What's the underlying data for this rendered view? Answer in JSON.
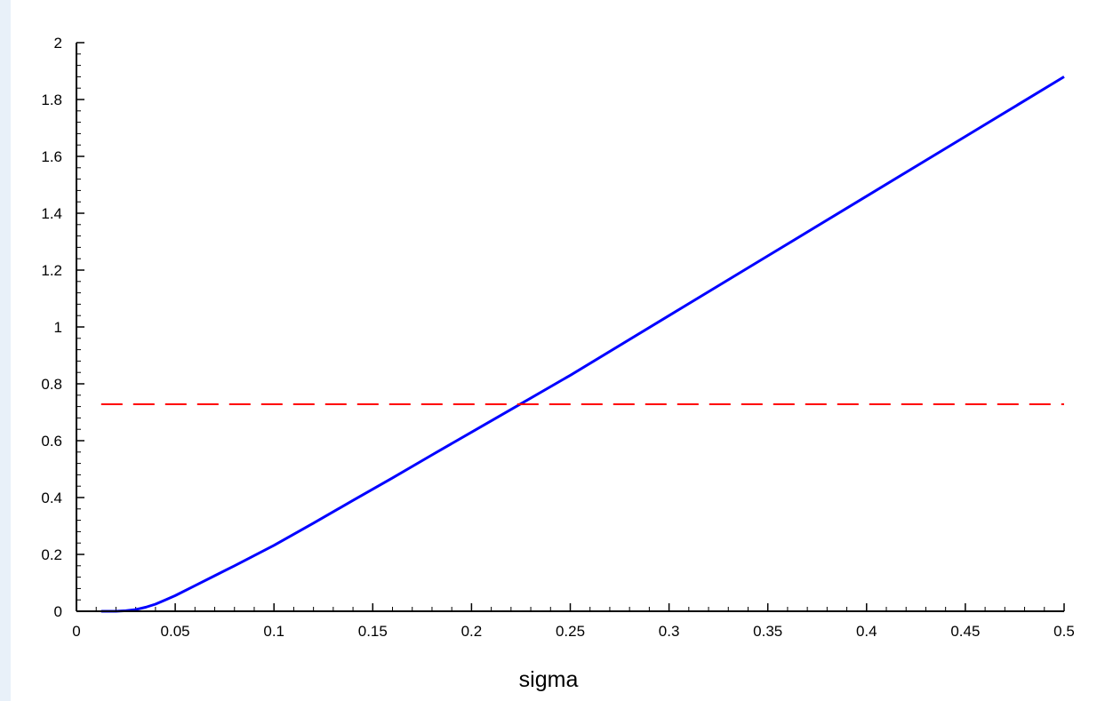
{
  "colors": {
    "page_background": "#e8f0f9",
    "plot_background": "#ffffff",
    "curve": "#0000ff",
    "reference_line": "#ff0000",
    "axes": "#000000"
  },
  "chart_data": {
    "type": "line",
    "title": "",
    "xlabel": "sigma",
    "ylabel": "",
    "xlim": [
      0,
      0.5
    ],
    "ylim": [
      0,
      2
    ],
    "grid": false,
    "legend": "none",
    "x_ticks": [
      0,
      0.05,
      0.1,
      0.15,
      0.2,
      0.25,
      0.3,
      0.35,
      0.4,
      0.45,
      0.5
    ],
    "x_tick_labels": [
      "0",
      "0.05",
      "0.1",
      "0.15",
      "0.2",
      "0.25",
      "0.3",
      "0.35",
      "0.4",
      "0.45",
      "0.5"
    ],
    "y_ticks": [
      0,
      0.2,
      0.4,
      0.6,
      0.8,
      1,
      1.2,
      1.4,
      1.6,
      1.8,
      2
    ],
    "y_tick_labels": [
      "0",
      "0.2",
      "0.4",
      "0.6",
      "0.8",
      "1",
      "1.2",
      "1.4",
      "1.6",
      "1.8",
      "2"
    ],
    "minor_ticks_per_interval": 5,
    "series": [
      {
        "style": "solid",
        "color": "#0000ff",
        "x": [
          0.0125,
          0.02,
          0.025,
          0.03,
          0.035,
          0.04,
          0.045,
          0.05,
          0.06,
          0.07,
          0.08,
          0.09,
          0.1,
          0.12,
          0.14,
          0.16,
          0.18,
          0.2,
          0.225,
          0.25,
          0.3,
          0.35,
          0.4,
          0.45,
          0.5
        ],
        "y": [
          0.0,
          0.0,
          0.002,
          0.006,
          0.014,
          0.025,
          0.04,
          0.055,
          0.09,
          0.125,
          0.16,
          0.196,
          0.232,
          0.31,
          0.39,
          0.469,
          0.55,
          0.63,
          0.73,
          0.83,
          1.04,
          1.25,
          1.46,
          1.67,
          1.88
        ]
      },
      {
        "style": "dashed",
        "color": "#ff0000",
        "x": [
          0.0125,
          0.5
        ],
        "y": [
          0.728,
          0.728
        ]
      }
    ]
  }
}
